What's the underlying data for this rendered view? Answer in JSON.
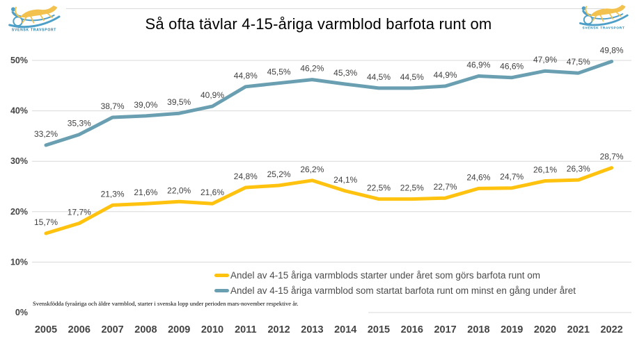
{
  "title": "Så ofta tävlar 4-15-åriga varmblod barfota runt om",
  "logo": {
    "text": "SVENSK TRAVSPORT",
    "horse_color": "#f2c14e",
    "blue_color": "#4d9fc7",
    "text_color": "#1f7ca8"
  },
  "footnote": "Svenskfödda fyraåriga  och äldre varmblod,  starter i svenska lopp under perioden mars-november  respektive år.",
  "colors": {
    "gridline": "#d9d9d9",
    "axis_text": "#444444",
    "data_label_text": "#404040",
    "series_barefoot_starts": "#ffc20e",
    "series_barefoot_horses": "#6a9fb2"
  },
  "chart_data": {
    "type": "line",
    "x": [
      2005,
      2006,
      2007,
      2008,
      2009,
      2010,
      2011,
      2012,
      2013,
      2014,
      2015,
      2016,
      2017,
      2018,
      2019,
      2020,
      2021,
      2022
    ],
    "series": [
      {
        "name": "Andel av 4-15 åriga varmblods starter under året som görs barfota runt om",
        "color": "#ffc20e",
        "values": [
          15.7,
          17.7,
          21.3,
          21.6,
          22.0,
          21.6,
          24.8,
          25.2,
          26.2,
          24.1,
          22.5,
          22.5,
          22.7,
          24.6,
          24.7,
          26.1,
          26.3,
          28.7
        ]
      },
      {
        "name": "Andel av 4-15 åriga varmblod som startat barfota runt om minst en gång under året",
        "color": "#6a9fb2",
        "values": [
          33.2,
          35.3,
          38.7,
          39.0,
          39.5,
          40.9,
          44.8,
          45.5,
          46.2,
          45.3,
          44.5,
          44.5,
          44.9,
          46.9,
          46.6,
          47.9,
          47.5,
          49.8
        ]
      }
    ],
    "yticks": [
      "0%",
      "10%",
      "20%",
      "30%",
      "40%",
      "50%"
    ],
    "ylim": [
      0,
      55
    ],
    "grid": true,
    "data_labels": true,
    "decimal_separator": ",",
    "legend_position": "bottom-center"
  }
}
